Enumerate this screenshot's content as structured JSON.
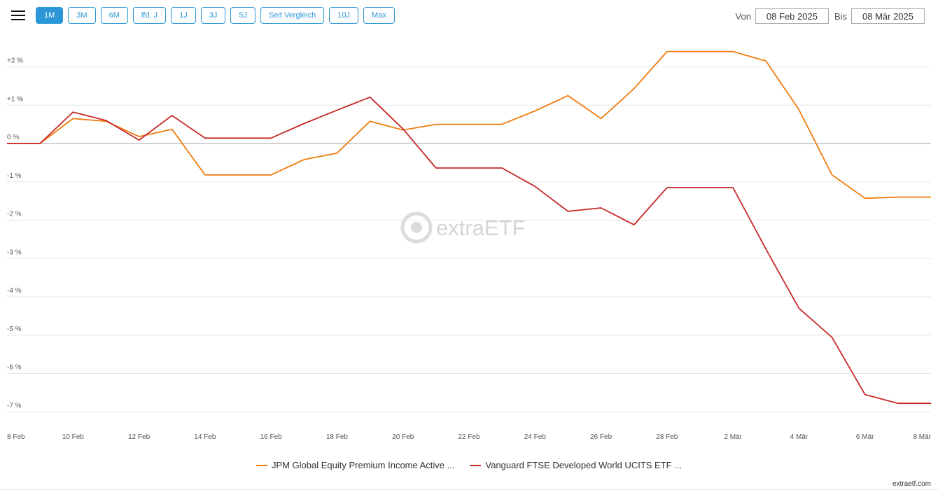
{
  "toolbar": {
    "menu_icon": "hamburger-icon",
    "ranges": [
      "1M",
      "3M",
      "6M",
      "lfd. J",
      "1J",
      "3J",
      "5J",
      "Seit Vergleich",
      "10J",
      "Max"
    ],
    "active_range": "1M"
  },
  "date_range": {
    "from_label": "Von",
    "from_value": "08 Feb 2025",
    "to_label": "Bis",
    "to_value": "08 Mär 2025"
  },
  "watermark": "extraETF",
  "credit": "extraetf.com",
  "colors": {
    "accent": "#2b96d8",
    "series_1": "#f07c0e",
    "series_2": "#c62828"
  },
  "chart_data": {
    "type": "line",
    "x_ticks": [
      "8 Feb",
      "10 Feb",
      "12 Feb",
      "14 Feb",
      "16 Feb",
      "18 Feb",
      "20 Feb",
      "22 Feb",
      "24 Feb",
      "26 Feb",
      "28 Feb",
      "2 Mär",
      "4 Mär",
      "6 Mär",
      "8 Mär"
    ],
    "y_ticks": [
      "+2 %",
      "+1 %",
      "0 %",
      "-1 %",
      "-2 %",
      "-3 %",
      "-4 %",
      "-5 %",
      "-6 %",
      "-7 %"
    ],
    "ylim": [
      -7.0,
      2.0
    ],
    "grid": true,
    "legend_position": "bottom-center",
    "x": [
      "2025-02-08",
      "2025-02-09",
      "2025-02-10",
      "2025-02-11",
      "2025-02-12",
      "2025-02-13",
      "2025-02-14",
      "2025-02-15",
      "2025-02-16",
      "2025-02-17",
      "2025-02-18",
      "2025-02-19",
      "2025-02-20",
      "2025-02-21",
      "2025-02-22",
      "2025-02-23",
      "2025-02-24",
      "2025-02-25",
      "2025-02-26",
      "2025-02-27",
      "2025-02-28",
      "2025-03-01",
      "2025-03-02",
      "2025-03-03",
      "2025-03-04",
      "2025-03-05",
      "2025-03-06",
      "2025-03-07",
      "2025-03-08"
    ],
    "series": [
      {
        "name": "JPM Global Equity Premium Income Active ...",
        "values": [
          0,
          0,
          0.65,
          0.58,
          0.18,
          0.37,
          -0.82,
          -0.82,
          -0.82,
          -0.42,
          -0.25,
          0.58,
          0.35,
          0.5,
          0.5,
          0.5,
          0.85,
          1.25,
          0.65,
          1.43,
          2.4,
          2.4,
          2.4,
          2.15,
          0.88,
          -0.82,
          -1.43,
          -1.4,
          -1.4
        ]
      },
      {
        "name": "Vanguard FTSE Developed World UCITS ETF ...",
        "values": [
          0,
          0,
          0.82,
          0.6,
          0.09,
          0.73,
          0.14,
          0.14,
          0.14,
          0.52,
          0.87,
          1.21,
          0.38,
          -0.64,
          -0.64,
          -0.64,
          -1.12,
          -1.77,
          -1.68,
          -2.12,
          -1.15,
          -1.15,
          -1.15,
          -2.76,
          -4.3,
          -5.06,
          -6.55,
          -6.78,
          -6.78
        ]
      }
    ]
  }
}
